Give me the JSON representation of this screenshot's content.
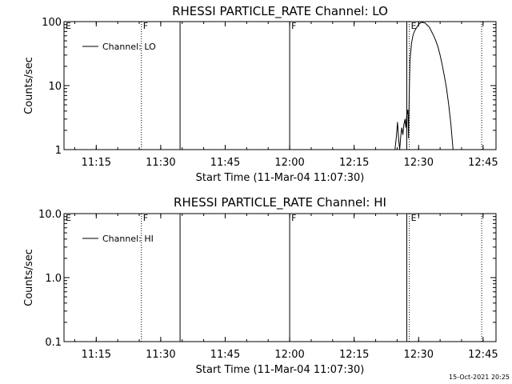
{
  "footer": {
    "timestamp": "15-Oct-2021 20:25"
  },
  "chart_data": [
    {
      "type": "line",
      "title": "RHESSI PARTICLE_RATE Channel: LO",
      "xlabel": "Start Time (11-Mar-04 11:07:30)",
      "ylabel": "Counts/sec",
      "yscale": "log",
      "xlim": [
        "11:07:30",
        "12:48:00"
      ],
      "ylim": [
        1,
        100
      ],
      "xticks": [
        "11:15",
        "11:30",
        "11:45",
        "12:00",
        "12:15",
        "12:30",
        "12:45"
      ],
      "yticks": [
        "1",
        "10",
        "100"
      ],
      "grid": false,
      "legend": {
        "position": "top-left",
        "entries": [
          "Channel: LO"
        ]
      },
      "series": [
        {
          "name": "Channel: LO",
          "color": "#000000",
          "points": [
            [
              "12:24:30",
              1
            ],
            [
              "12:24:50",
              1.6
            ],
            [
              "12:25:05",
              2.7
            ],
            [
              "12:25:20",
              1.5
            ],
            [
              "12:25:35",
              1
            ],
            [
              "12:25:50",
              1.6
            ],
            [
              "12:26:05",
              2.2
            ],
            [
              "12:26:20",
              1.7
            ],
            [
              "12:26:35",
              2.5
            ],
            [
              "12:26:50",
              3
            ],
            [
              "12:27:00",
              2.2
            ],
            [
              "12:27:15",
              3.5
            ],
            [
              "12:27:30",
              4.2
            ],
            [
              "12:27:40",
              1.5
            ],
            [
              "12:27:50",
              8
            ],
            [
              "12:28:00",
              25
            ],
            [
              "12:28:20",
              45
            ],
            [
              "12:28:40",
              60
            ],
            [
              "12:29:00",
              70
            ],
            [
              "12:29:30",
              80
            ],
            [
              "12:30:00",
              90
            ],
            [
              "12:30:30",
              97
            ],
            [
              "12:31:00",
              97
            ],
            [
              "12:31:30",
              95
            ],
            [
              "12:32:00",
              88
            ],
            [
              "12:32:30",
              82
            ],
            [
              "12:33:00",
              70
            ],
            [
              "12:33:30",
              60
            ],
            [
              "12:34:00",
              50
            ],
            [
              "12:34:30",
              40
            ],
            [
              "12:35:00",
              30
            ],
            [
              "12:35:30",
              21
            ],
            [
              "12:36:00",
              14
            ],
            [
              "12:36:30",
              9
            ],
            [
              "12:37:00",
              5
            ],
            [
              "12:37:30",
              2.5
            ],
            [
              "12:38:00",
              1
            ]
          ]
        }
      ],
      "markers": [
        {
          "time": "11:07:30",
          "label": "E",
          "style": "none"
        },
        {
          "time": "11:25:30",
          "label": "F",
          "style": "dotted"
        },
        {
          "time": "11:34:30",
          "label": "",
          "style": "solid"
        },
        {
          "time": "12:00:00",
          "label": "F",
          "style": "solid"
        },
        {
          "time": "12:27:15",
          "label": "",
          "style": "solid"
        },
        {
          "time": "12:27:50",
          "label": "E",
          "style": "dotted"
        },
        {
          "time": "12:44:40",
          "label": "",
          "style": "dotted"
        }
      ]
    },
    {
      "type": "line",
      "title": "RHESSI PARTICLE_RATE Channel: HI",
      "xlabel": "Start Time (11-Mar-04 11:07:30)",
      "ylabel": "Counts/sec",
      "yscale": "log",
      "xlim": [
        "11:07:30",
        "12:48:00"
      ],
      "ylim": [
        0.1,
        10
      ],
      "xticks": [
        "11:15",
        "11:30",
        "11:45",
        "12:00",
        "12:15",
        "12:30",
        "12:45"
      ],
      "yticks": [
        "0.1",
        "1.0",
        "10.0"
      ],
      "grid": false,
      "legend": {
        "position": "top-left",
        "entries": [
          "Channel: HI"
        ]
      },
      "series": [
        {
          "name": "Channel: HI",
          "color": "#000000",
          "points": []
        }
      ],
      "markers": [
        {
          "time": "11:07:30",
          "label": "E",
          "style": "none"
        },
        {
          "time": "11:25:30",
          "label": "F",
          "style": "dotted"
        },
        {
          "time": "11:34:30",
          "label": "",
          "style": "solid"
        },
        {
          "time": "12:00:00",
          "label": "F",
          "style": "solid"
        },
        {
          "time": "12:27:15",
          "label": "",
          "style": "solid"
        },
        {
          "time": "12:27:50",
          "label": "E",
          "style": "dotted"
        },
        {
          "time": "12:44:40",
          "label": "",
          "style": "dotted"
        }
      ]
    }
  ]
}
